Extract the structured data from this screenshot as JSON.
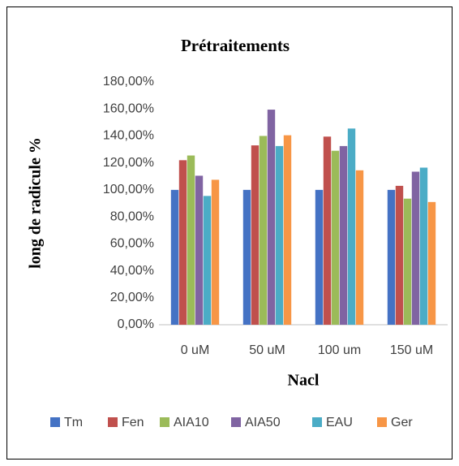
{
  "chart_data": {
    "type": "bar",
    "title": "Prétraitements",
    "x_label": "Nacl",
    "y_label": "long de radicule %",
    "categories": [
      "0 uM",
      "50 uM",
      "100 um",
      "150 uM"
    ],
    "series": [
      {
        "name": "Tm",
        "color": "#4472c4",
        "values": [
          100,
          100,
          100,
          100
        ]
      },
      {
        "name": "Fen",
        "color": "#c0504d",
        "values": [
          122,
          133,
          139.5,
          103
        ]
      },
      {
        "name": "AIA10",
        "color": "#9bbb59",
        "values": [
          125.5,
          140,
          129,
          93.5
        ]
      },
      {
        "name": "AIA50",
        "color": "#8064a2",
        "values": [
          110.5,
          159.5,
          132.5,
          113.5
        ]
      },
      {
        "name": "EAU",
        "color": "#4bacc6",
        "values": [
          95.5,
          132.5,
          145.5,
          116.5
        ]
      },
      {
        "name": "Ger",
        "color": "#f79646",
        "values": [
          107.5,
          140.5,
          114.5,
          91
        ]
      }
    ],
    "ylim": [
      0,
      180
    ],
    "yticks": [
      {
        "value": 0,
        "label": "0,00%"
      },
      {
        "value": 20,
        "label": "20,00%"
      },
      {
        "value": 40,
        "label": "40,00%"
      },
      {
        "value": 60,
        "label": "60,00%"
      },
      {
        "value": 80,
        "label": "80,00%"
      },
      {
        "value": 100,
        "label": "100,00%"
      },
      {
        "value": 120,
        "label": "120,00%"
      },
      {
        "value": 140,
        "label": "140,00%"
      },
      {
        "value": 160,
        "label": "160,00%"
      },
      {
        "value": 180,
        "label": "180,00%"
      }
    ],
    "grid": false,
    "legend": "bottom"
  }
}
